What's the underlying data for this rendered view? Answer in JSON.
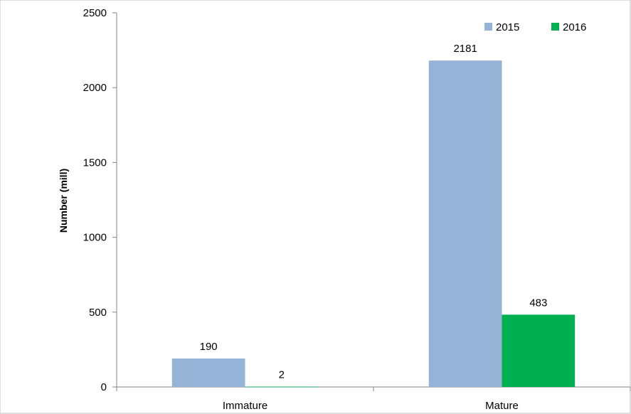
{
  "chart_data": {
    "type": "bar",
    "categories": [
      "Immature",
      "Mature"
    ],
    "series": [
      {
        "name": "2015",
        "values": [
          190,
          2181
        ],
        "color": "#95B3D7"
      },
      {
        "name": "2016",
        "values": [
          2,
          483
        ],
        "color": "#00B050"
      }
    ],
    "data_labels": [
      [
        "190",
        "2181"
      ],
      [
        "2",
        "483"
      ]
    ],
    "ylabel": "Number (mill)",
    "xlabel": "",
    "title": "",
    "ylim": [
      0,
      2500
    ],
    "yticks": [
      0,
      500,
      1000,
      1500,
      2000,
      2500
    ],
    "ytick_labels": [
      "0",
      "500",
      "1000",
      "1500",
      "2000",
      "2500"
    ],
    "grid": false,
    "legend_position": "top-right"
  }
}
